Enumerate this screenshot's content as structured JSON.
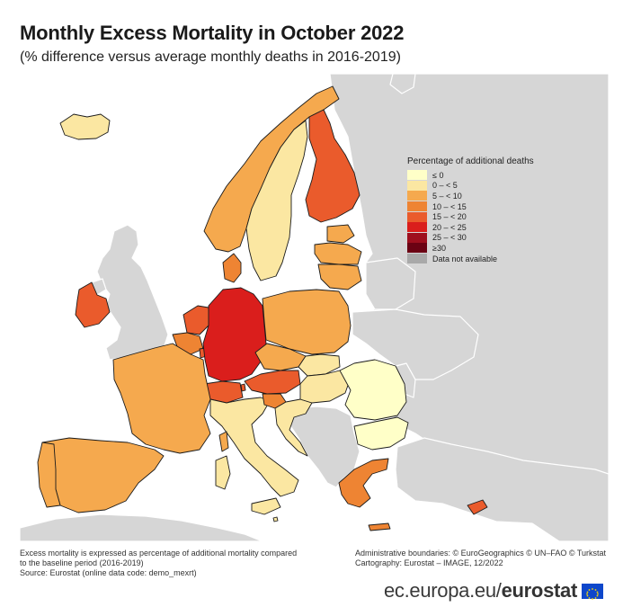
{
  "title": "Monthly Excess Mortality in October 2022",
  "subtitle": "(% difference versus average monthly deaths in 2016-2019)",
  "legend": {
    "title": "Percentage of additional deaths",
    "items": [
      {
        "label": "≤ 0",
        "color": "#ffffc8"
      },
      {
        "label": "0 – < 5",
        "color": "#fbe7a2"
      },
      {
        "label": "5 – < 10",
        "color": "#f5a94e"
      },
      {
        "label": "10 – < 15",
        "color": "#ee8433"
      },
      {
        "label": "15 – < 20",
        "color": "#ea5b2c"
      },
      {
        "label": "20 – < 25",
        "color": "#da1e1c"
      },
      {
        "label": "25 – < 30",
        "color": "#9e0f1e"
      },
      {
        "label": "≥30",
        "color": "#6b0213"
      },
      {
        "label": "Data not available",
        "color": "#a9a9a9"
      }
    ]
  },
  "countries": {
    "iceland": {
      "class": "0 – < 5"
    },
    "norway": {
      "class": "5 – < 10"
    },
    "sweden": {
      "class": "0 – < 5"
    },
    "finland": {
      "class": "15 – < 20"
    },
    "estonia": {
      "class": "5 – < 10"
    },
    "latvia": {
      "class": "5 – < 10"
    },
    "lithuania": {
      "class": "5 – < 10"
    },
    "denmark": {
      "class": "10 – < 15"
    },
    "ireland": {
      "class": "15 – < 20"
    },
    "netherlands": {
      "class": "15 – < 20"
    },
    "belgium": {
      "class": "10 – < 15"
    },
    "luxembourg": {
      "class": "15 – < 20"
    },
    "germany": {
      "class": "20 – < 25"
    },
    "poland": {
      "class": "5 – < 10"
    },
    "czechia": {
      "class": "5 – < 10"
    },
    "slovakia": {
      "class": "0 – < 5"
    },
    "austria": {
      "class": "15 – < 20"
    },
    "switzerland": {
      "class": "15 – < 20"
    },
    "liechtenstein": {
      "class": "15 – < 20"
    },
    "france": {
      "class": "5 – < 10"
    },
    "spain": {
      "class": "5 – < 10"
    },
    "portugal": {
      "class": "5 – < 10"
    },
    "italy": {
      "class": "0 – < 5"
    },
    "slovenia": {
      "class": "10 – < 15"
    },
    "croatia": {
      "class": "0 – < 5"
    },
    "hungary": {
      "class": "0 – < 5"
    },
    "romania": {
      "class": "≤ 0"
    },
    "bulgaria": {
      "class": "≤ 0"
    },
    "greece": {
      "class": "10 – < 15"
    },
    "cyprus": {
      "class": "15 – < 20"
    },
    "malta": {
      "class": "0 – < 5"
    }
  },
  "colors": {
    "nodata_land": "#d6d6d6",
    "sea": "#ffffff",
    "border": "#1b1b1b",
    "eu_blue": "#0e47cb",
    "eu_star": "#ffdd00"
  },
  "footer": {
    "note_line1": "Excess mortality is expressed as percentage of additional mortality compared",
    "note_line2": "to the baseline period (2016-2019)",
    "source": "Source: Eurostat (online data code: demo_mexrt)",
    "boundaries": "Administrative boundaries: © EuroGeographics © UN–FAO © Turkstat",
    "cartography": "Cartography: Eurostat – IMAGE, 12/2022"
  },
  "brand": {
    "domain": "ec.europa.eu/",
    "name": "eurostat"
  }
}
